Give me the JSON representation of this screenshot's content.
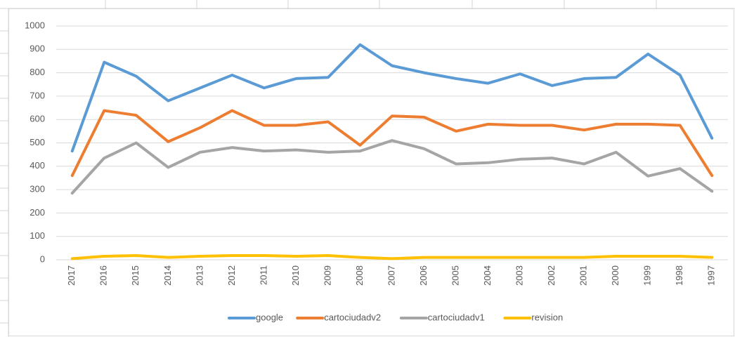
{
  "chart_data": {
    "type": "line",
    "categories": [
      "2017",
      "2016",
      "2015",
      "2014",
      "2013",
      "2012",
      "2011",
      "2010",
      "2009",
      "2008",
      "2007",
      "2006",
      "2005",
      "2004",
      "2003",
      "2002",
      "2001",
      "2000",
      "1999",
      "1998",
      "1997"
    ],
    "series": [
      {
        "name": "google",
        "color": "#5b9bd5",
        "values": [
          465,
          845,
          785,
          680,
          735,
          790,
          735,
          775,
          780,
          920,
          830,
          800,
          775,
          755,
          795,
          745,
          775,
          780,
          880,
          790,
          520
        ]
      },
      {
        "name": "cartociudadv2",
        "color": "#ed7d31",
        "values": [
          360,
          638,
          618,
          505,
          565,
          638,
          575,
          575,
          590,
          490,
          615,
          610,
          550,
          580,
          575,
          575,
          555,
          580,
          580,
          575,
          360
        ]
      },
      {
        "name": "cartociudadv1",
        "color": "#a5a5a5",
        "values": [
          285,
          435,
          500,
          395,
          460,
          480,
          465,
          470,
          460,
          465,
          510,
          475,
          410,
          415,
          430,
          435,
          410,
          460,
          358,
          390,
          293
        ]
      },
      {
        "name": "revision",
        "color": "#ffc000",
        "values": [
          5,
          15,
          18,
          10,
          15,
          18,
          18,
          15,
          18,
          10,
          5,
          10,
          10,
          10,
          10,
          10,
          10,
          15,
          15,
          15,
          10
        ]
      }
    ],
    "ylim": [
      0,
      1000
    ],
    "yticks": [
      0,
      100,
      200,
      300,
      400,
      500,
      600,
      700,
      800,
      900,
      1000
    ],
    "grid": true,
    "legend": "bottom"
  }
}
